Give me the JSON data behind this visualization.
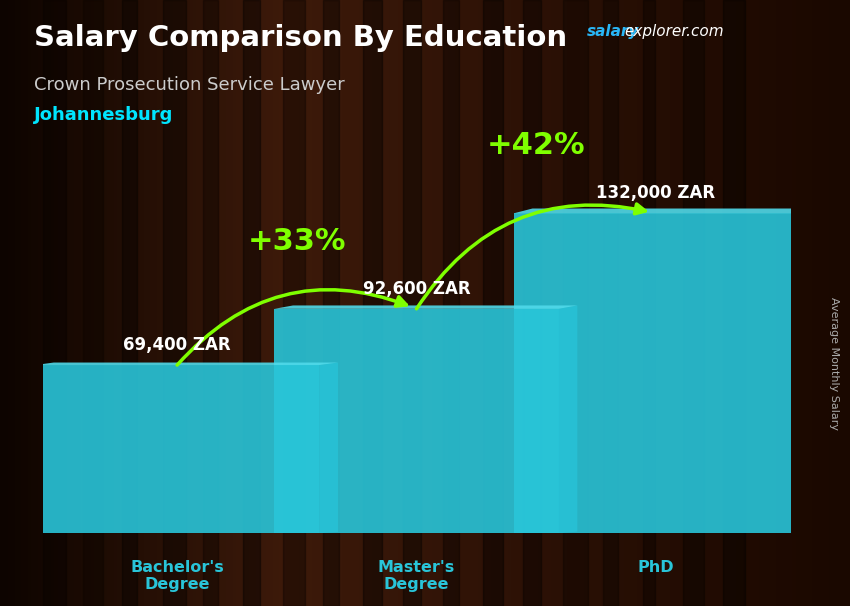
{
  "title": "Salary Comparison By Education",
  "subtitle": "Crown Prosecution Service Lawyer",
  "city": "Johannesburg",
  "watermark": "salaryexplorer.com",
  "ylabel": "Average Monthly Salary",
  "categories": [
    "Bachelor's\nDegree",
    "Master's\nDegree",
    "PhD"
  ],
  "values": [
    69400,
    92600,
    132000
  ],
  "value_labels": [
    "69,400 ZAR",
    "92,600 ZAR",
    "132,000 ZAR"
  ],
  "pct_labels": [
    "+33%",
    "+42%"
  ],
  "bar_color_face": "#29c5d9",
  "bar_color_side": "#1a9db5",
  "bar_color_top": "#50daea",
  "arrow_color": "#7fff00",
  "pct_color": "#7fff00",
  "title_color": "#ffffff",
  "subtitle_color": "#cccccc",
  "city_color": "#00e5ff",
  "value_label_color": "#ffffff",
  "xtick_color": "#29c5d9",
  "bg_dark": "#1a0800",
  "bg_mid": "#3d1a0a",
  "ylim": [
    0,
    155000
  ],
  "bar_width": 0.38,
  "bar_positions": [
    0.18,
    0.5,
    0.82
  ]
}
